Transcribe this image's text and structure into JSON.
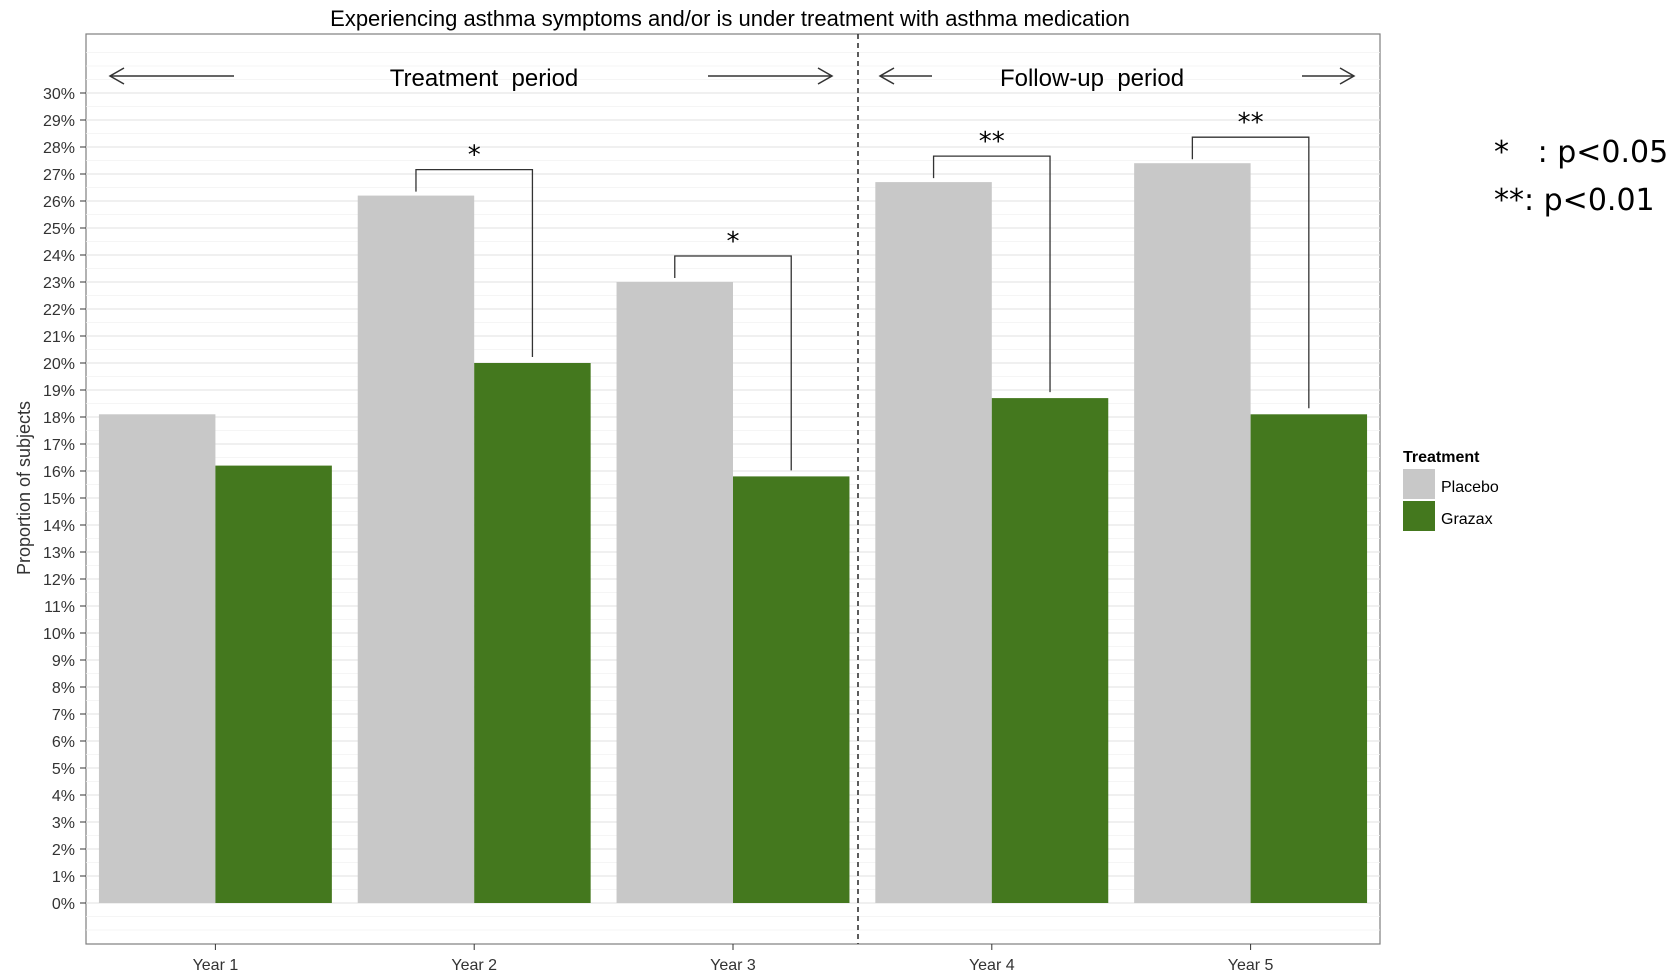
{
  "chart_data": {
    "type": "bar",
    "title": "Experiencing asthma symptoms and/or is under treatment with asthma medication",
    "xlabel": "",
    "ylabel": "Proportion of subjects",
    "categories": [
      "Year 1",
      "Year 2",
      "Year 3",
      "Year 4",
      "Year 5"
    ],
    "series": [
      {
        "name": "Placebo",
        "color": "#c8c8c8",
        "values": [
          18.1,
          26.2,
          23.0,
          26.7,
          27.4
        ]
      },
      {
        "name": "Grazax",
        "color": "#44781e",
        "values": [
          16.2,
          20.0,
          15.8,
          18.7,
          18.1
        ]
      }
    ],
    "ylim": [
      0,
      30
    ],
    "yticks": [
      "0%",
      "1%",
      "2%",
      "3%",
      "4%",
      "5%",
      "6%",
      "7%",
      "8%",
      "9%",
      "10%",
      "11%",
      "12%",
      "13%",
      "14%",
      "15%",
      "16%",
      "17%",
      "18%",
      "19%",
      "20%",
      "21%",
      "22%",
      "23%",
      "24%",
      "25%",
      "26%",
      "27%",
      "28%",
      "29%",
      "30%"
    ],
    "grid": true,
    "legend": {
      "title": "Treatment",
      "position": "right"
    },
    "periods": [
      {
        "label": "Treatment  period"
      },
      {
        "label": "Follow-up  period"
      }
    ],
    "significance": [
      {
        "category": "Year 2",
        "marker": "*"
      },
      {
        "category": "Year 3",
        "marker": "*"
      },
      {
        "category": "Year 4",
        "marker": "**"
      },
      {
        "category": "Year 5",
        "marker": "**"
      }
    ],
    "notes": [
      "*   : p<0.05",
      "**: p<0.01"
    ]
  }
}
